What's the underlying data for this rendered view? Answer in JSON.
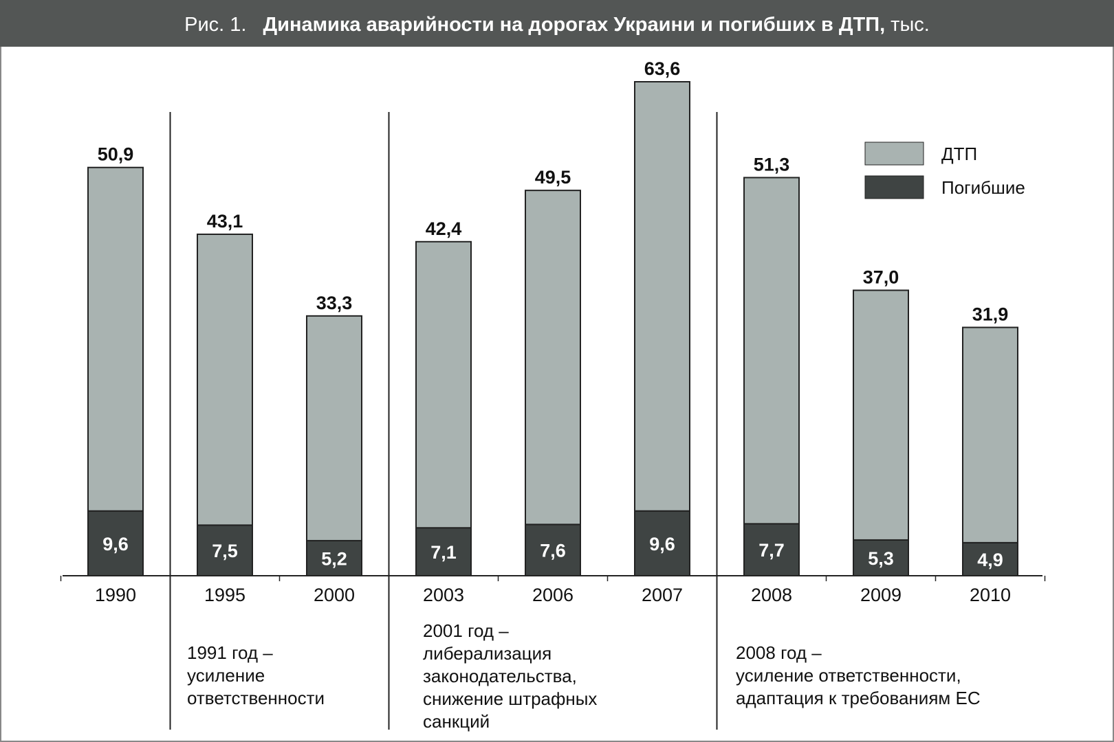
{
  "chart_data": {
    "type": "stacked_bar",
    "title_prefix": "Рис. 1.",
    "title": "Динамика аварийности на дорогах Украини и погибших в ДТП,",
    "title_suffix": "тыс.",
    "categories": [
      "1990",
      "1995",
      "2000",
      "2003",
      "2006",
      "2007",
      "2008",
      "2009",
      "2010"
    ],
    "series": [
      {
        "name": "Погибшие",
        "color": "#3f4443",
        "values": [
          9.6,
          7.5,
          5.2,
          7.1,
          7.6,
          9.6,
          7.7,
          5.3,
          4.9
        ],
        "value_labels": [
          "9,6",
          "7,5",
          "5,2",
          "7,1",
          "7,6",
          "9,6",
          "7,7",
          "5,3",
          "4,9"
        ]
      },
      {
        "name": "ДТП",
        "color": "#a9b3b1",
        "values": [
          50.9,
          43.1,
          33.3,
          42.4,
          49.5,
          63.6,
          51.3,
          37.0,
          31.9
        ],
        "value_labels": [
          "50,9",
          "43,1",
          "33,3",
          "42,4",
          "49,5",
          "63,6",
          "51,3",
          "37,0",
          "31,9"
        ]
      }
    ],
    "annotations": [
      {
        "lines": [
          "1991 год –",
          "усиление",
          "ответственности"
        ]
      },
      {
        "lines": [
          "2001 год –",
          "либерализация",
          "законодательства,",
          "снижение штрафных",
          "санкций"
        ]
      },
      {
        "lines": [
          "2008 год –",
          "усиление ответственности,",
          "адаптация к требованиям ЕС"
        ]
      }
    ]
  }
}
